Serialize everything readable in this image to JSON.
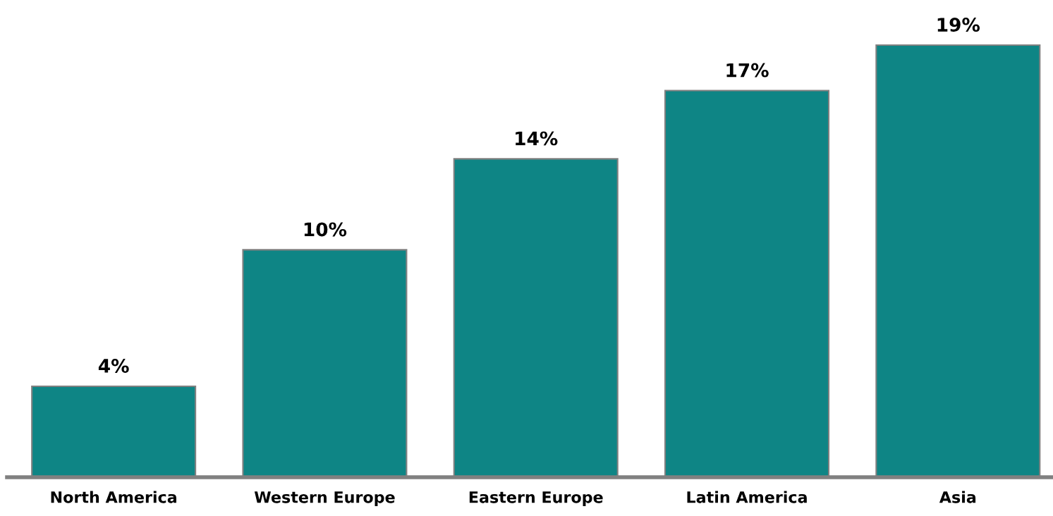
{
  "chart_data": {
    "type": "bar",
    "categories": [
      "North America",
      "Western Europe",
      "Eastern Europe",
      "Latin America",
      "Asia"
    ],
    "values": [
      4,
      10,
      14,
      17,
      19
    ],
    "value_labels": [
      "4%",
      "10%",
      "14%",
      "17%",
      "19%"
    ],
    "color": "#0e8585",
    "grid": false,
    "legend": false
  }
}
